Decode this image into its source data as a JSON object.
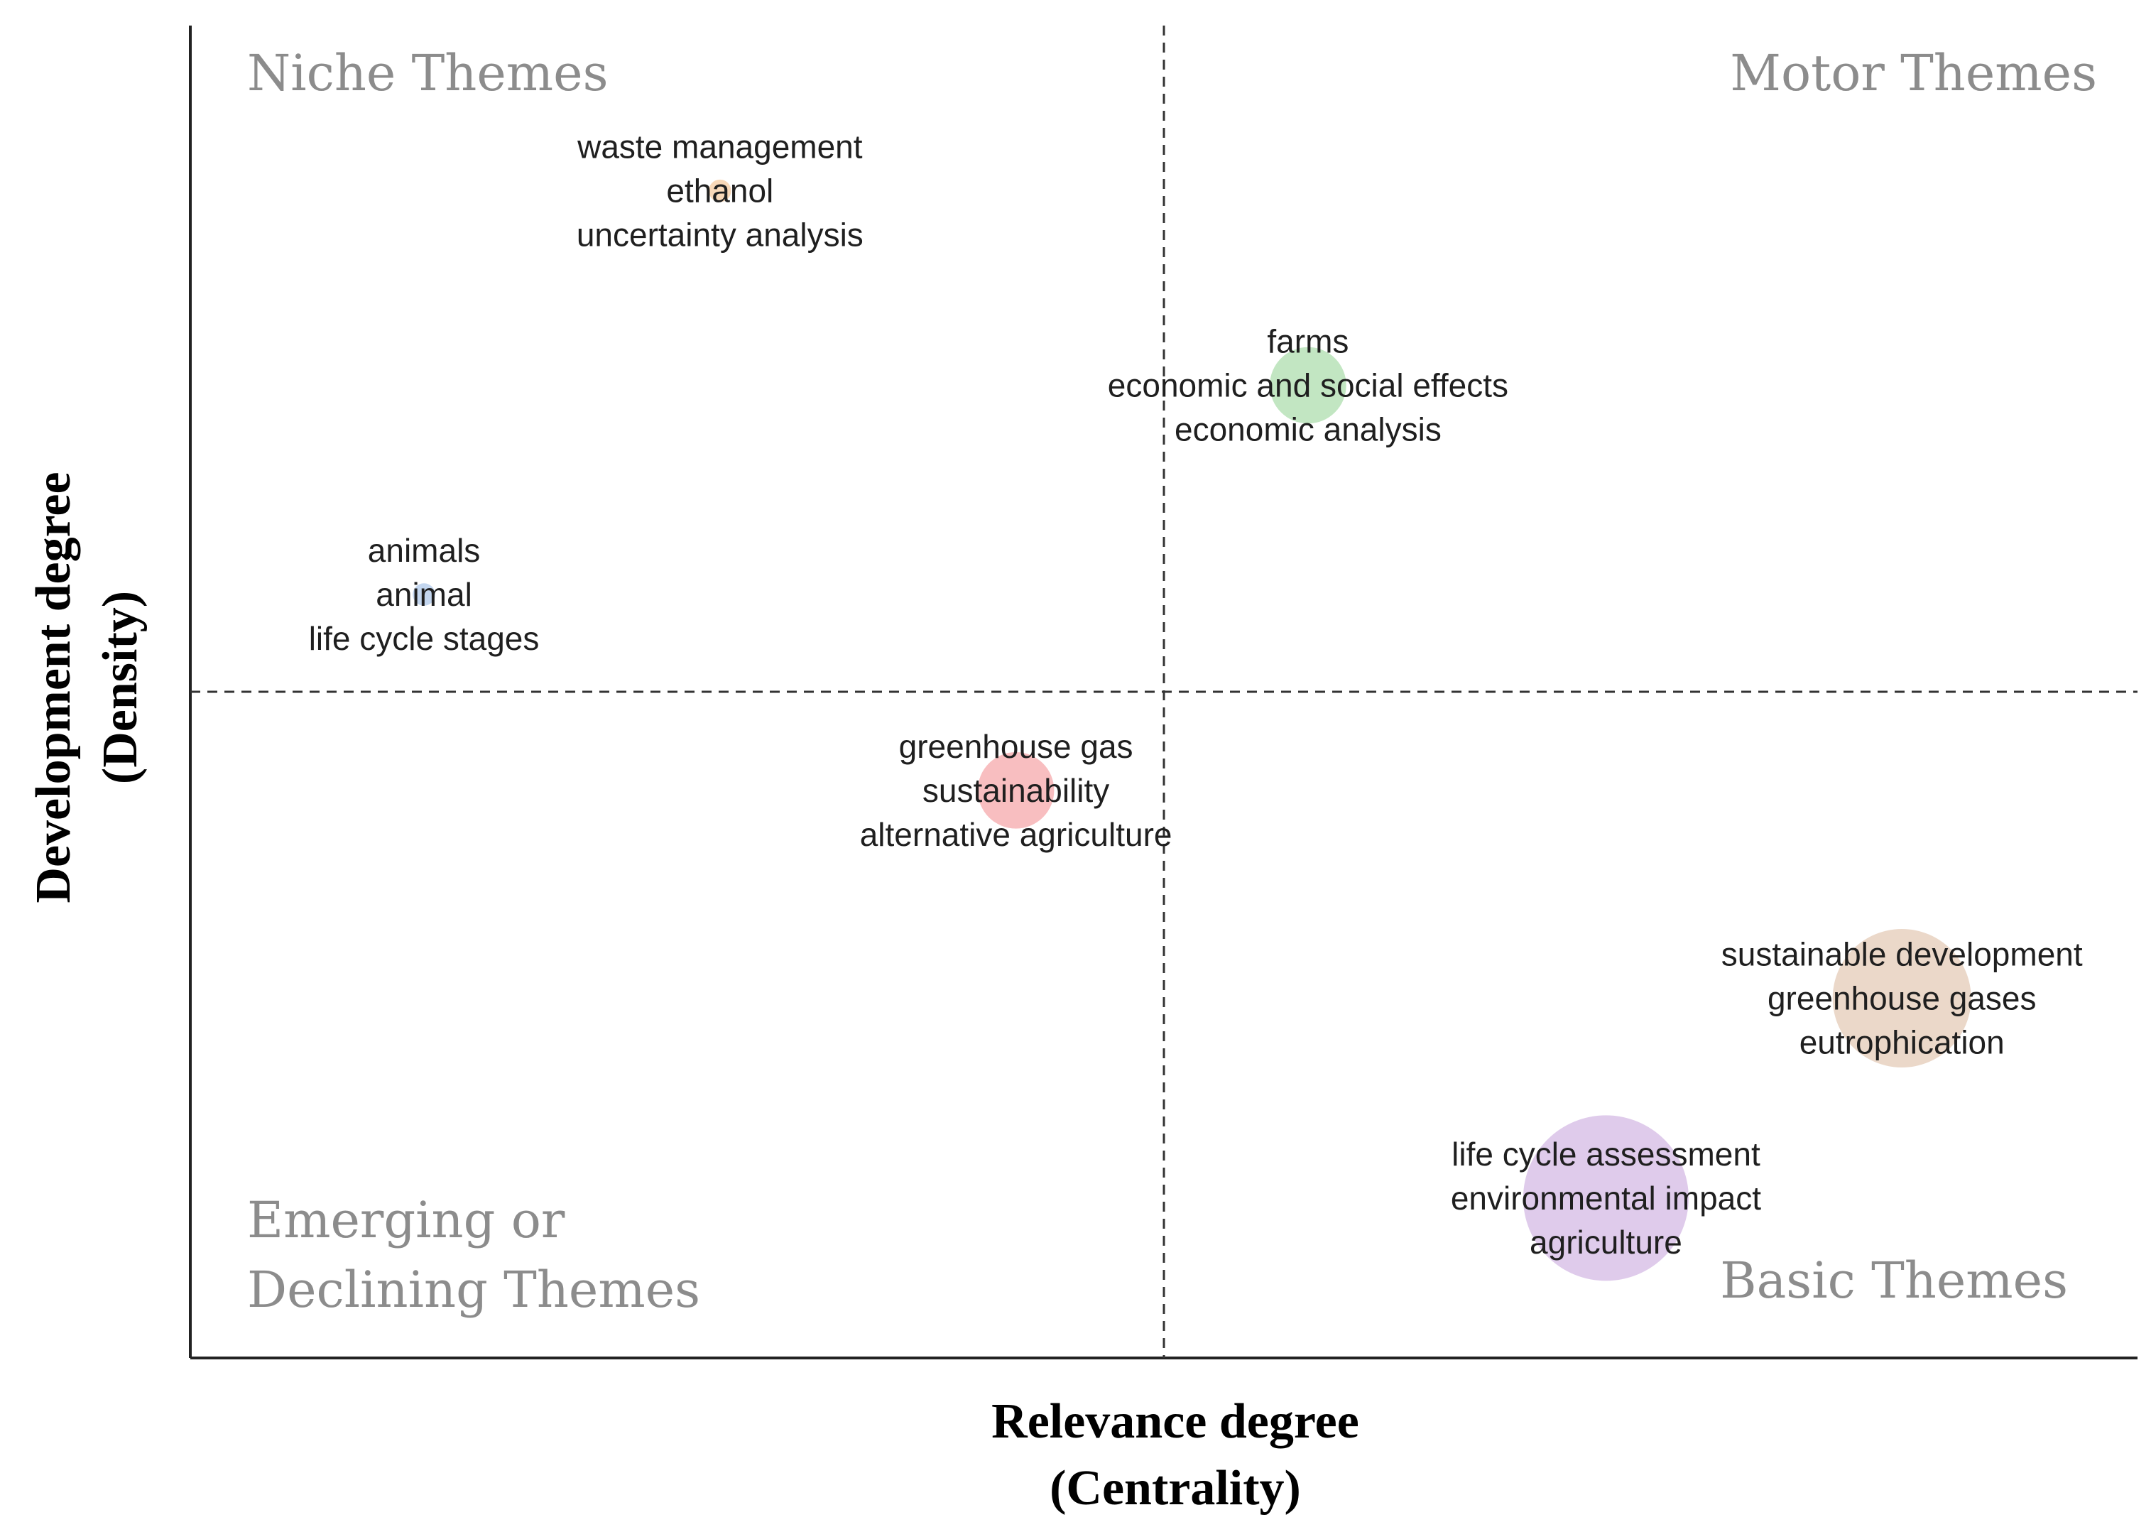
{
  "chart_data": {
    "type": "scatter",
    "title": "",
    "xlabel": [
      "Relevance degree",
      "(Centrality)"
    ],
    "ylabel": [
      "Development degree",
      "(Density)"
    ],
    "quadrants": {
      "top_left": [
        "Niche Themes"
      ],
      "top_right": [
        "Motor Themes"
      ],
      "bottom_left": [
        "Emerging or",
        "Declining Themes"
      ],
      "bottom_right": [
        "Basic Themes"
      ]
    },
    "xlim": [
      0,
      1
    ],
    "ylim": [
      0,
      1
    ],
    "divider": {
      "x": 0.5,
      "y": 0.5
    },
    "grid": false,
    "clusters": [
      {
        "x": 0.272,
        "y": 0.876,
        "size": 0.02,
        "color": "#f5c89a",
        "labels": [
          "waste management",
          "ethanol",
          "uncertainty analysis"
        ]
      },
      {
        "x": 0.574,
        "y": 0.73,
        "size": 0.22,
        "color": "#a8dca8",
        "labels": [
          "farms",
          "economic and social effects",
          "economic analysis"
        ]
      },
      {
        "x": 0.12,
        "y": 0.573,
        "size": 0.02,
        "color": "#a9c4e8",
        "labels": [
          "animals",
          "animal",
          "life cycle stages"
        ]
      },
      {
        "x": 0.424,
        "y": 0.426,
        "size": 0.22,
        "color": "#f5a3a5",
        "labels": [
          "greenhouse gas",
          "sustainability",
          "alternative agriculture"
        ]
      },
      {
        "x": 0.879,
        "y": 0.27,
        "size": 0.45,
        "color": "#e3c8b2",
        "labels": [
          "sustainable development",
          "greenhouse gases",
          "eutrophication"
        ]
      },
      {
        "x": 0.727,
        "y": 0.12,
        "size": 0.55,
        "color": "#d2b5e3",
        "labels": [
          "life cycle assessment",
          "environmental impact",
          "agriculture"
        ]
      }
    ]
  }
}
